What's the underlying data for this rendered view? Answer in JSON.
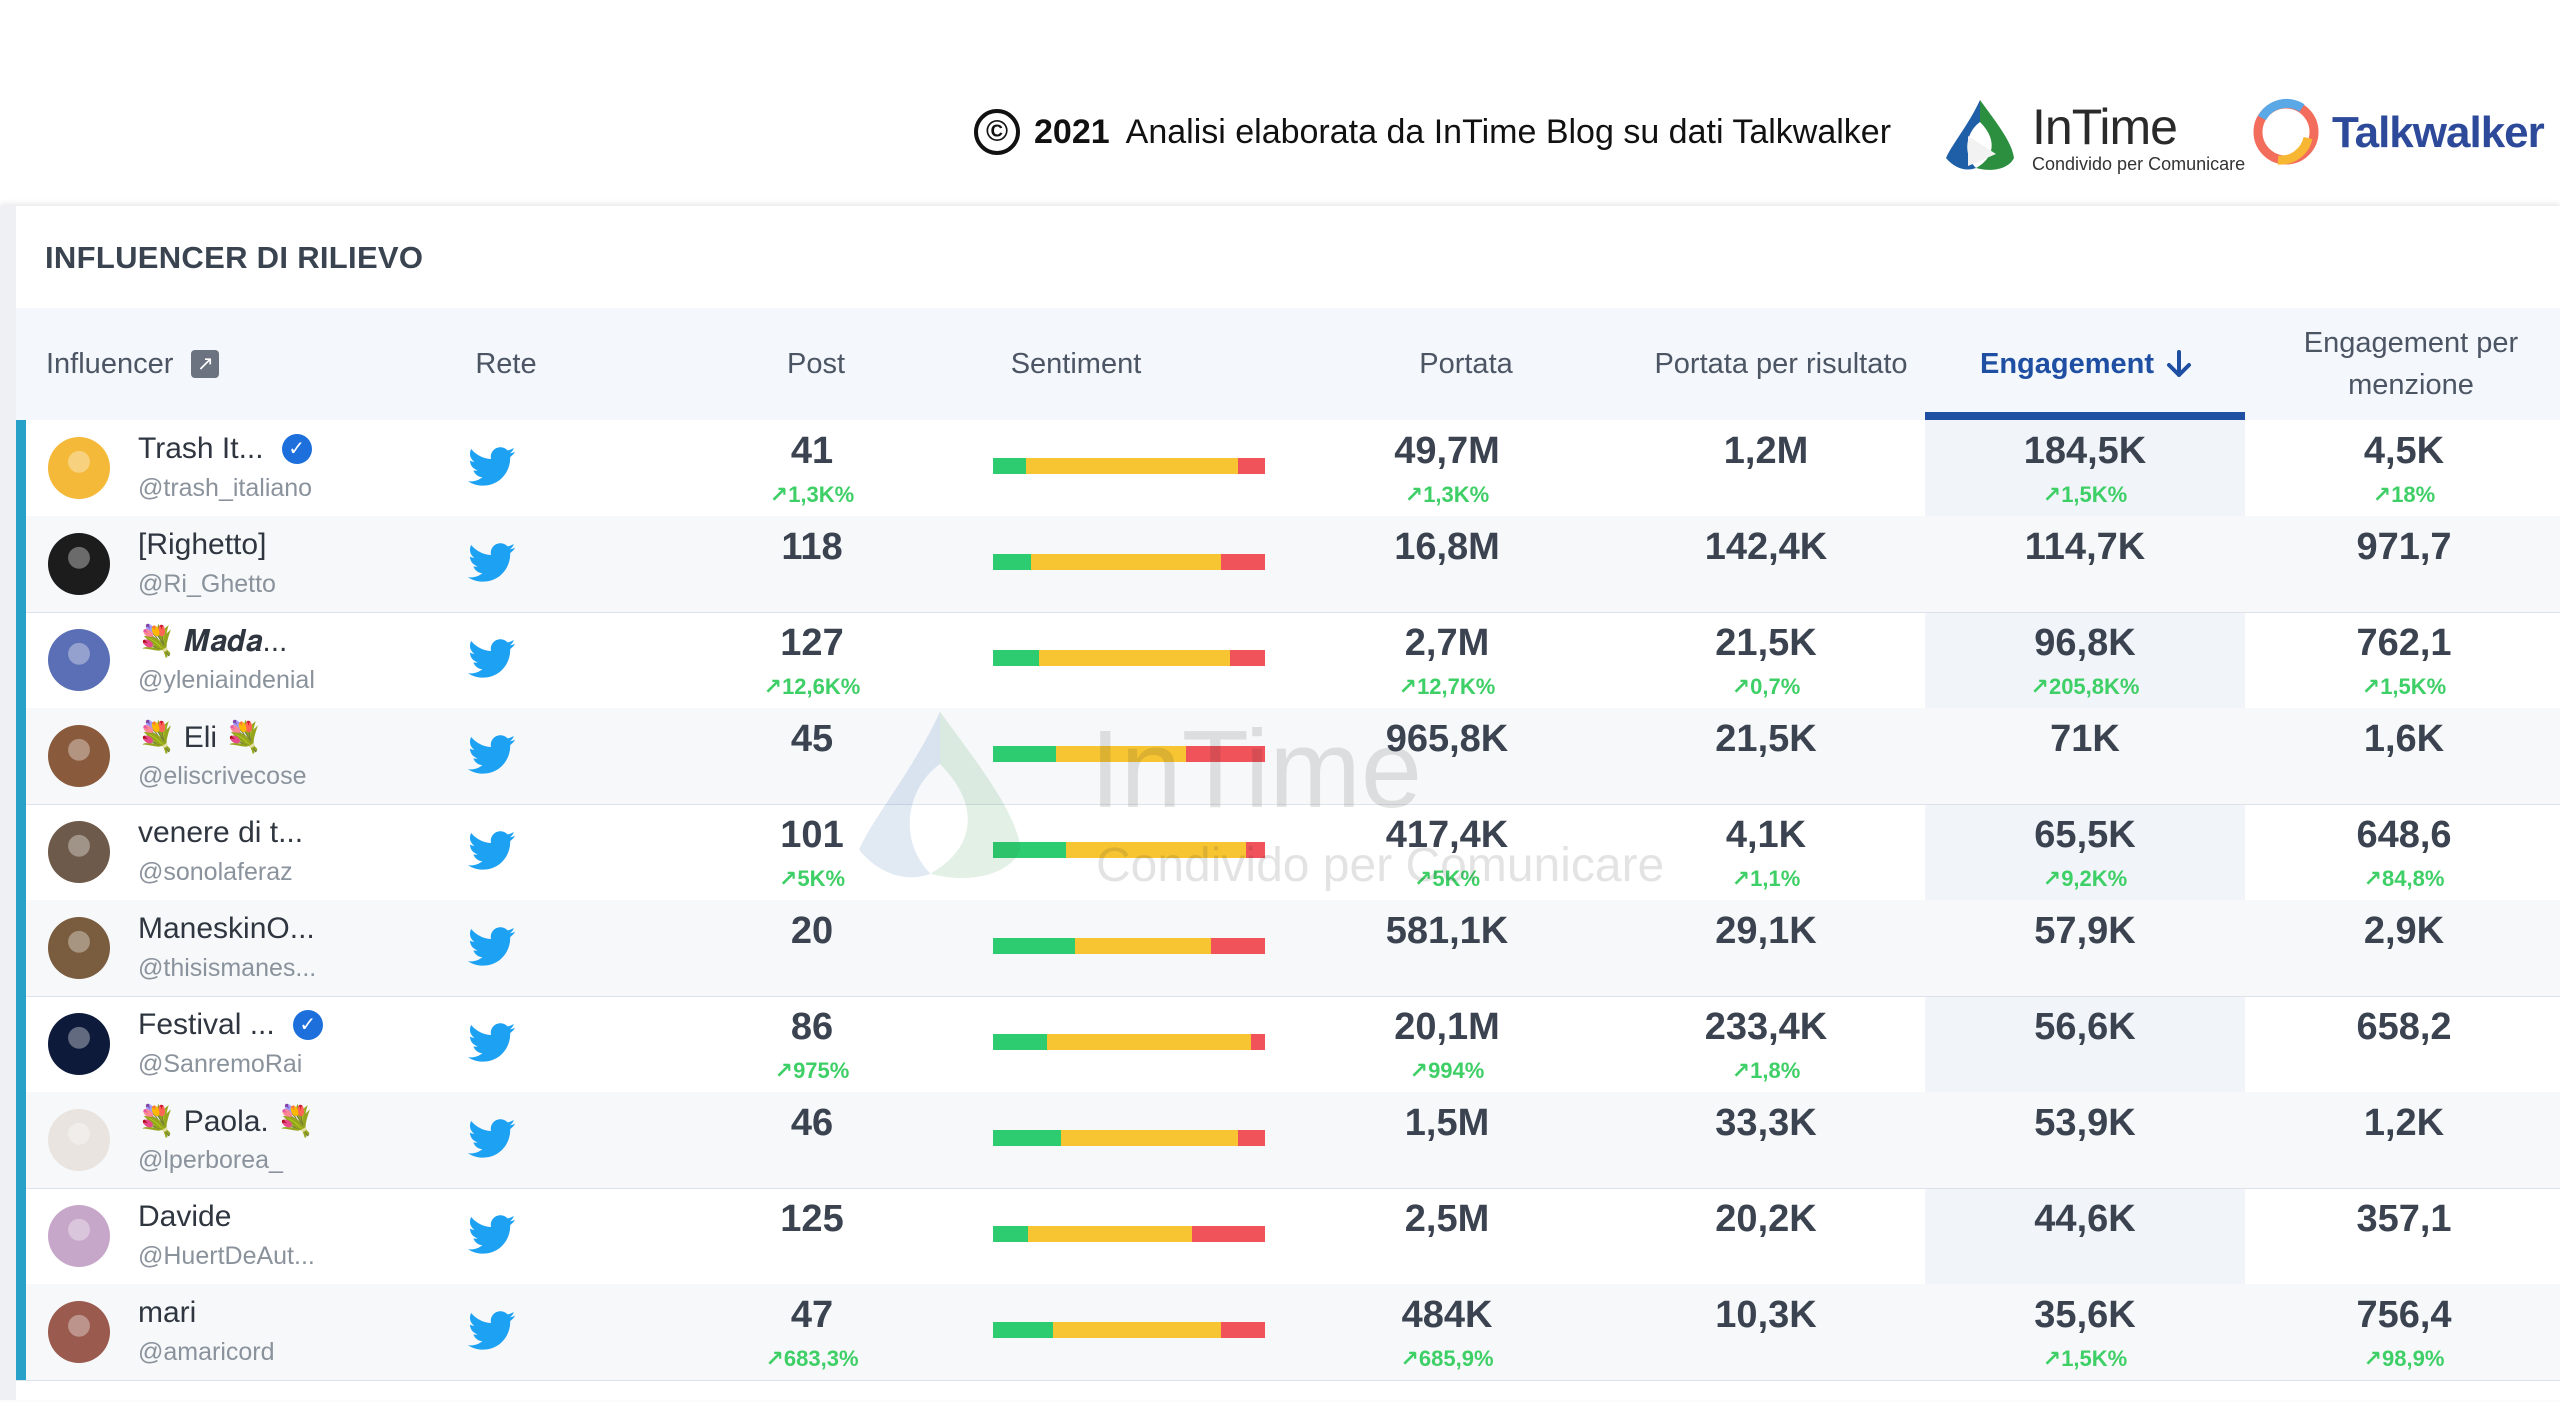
{
  "banner": {
    "copyright_symbol": "©",
    "year": "2021",
    "text": "Analisi elaborata da InTime Blog su dati Talkwalker",
    "intime_name": "InTime",
    "intime_tagline": "Condivido per Comunicare",
    "talkwalker_name": "Talkwalker"
  },
  "watermark": {
    "name": "InTime",
    "tagline": "Condivido per Comunicare"
  },
  "panel": {
    "title": "INFLUENCER DI RILIEVO"
  },
  "columns": {
    "influencer": "Influencer",
    "rete": "Rete",
    "post": "Post",
    "sentiment": "Sentiment",
    "portata": "Portata",
    "portata_risultato": "Portata per risultato",
    "engagement": "Engagement",
    "engagement_menzione_1": "Engagement per",
    "engagement_menzione_2": "menzione"
  },
  "colors": {
    "positive": "#2ecc71",
    "neutral": "#f7c531",
    "negative": "#f0535a",
    "accent": "#27a1c8",
    "sort": "#1f4fa3"
  },
  "rows": [
    {
      "name": "Trash It...",
      "verified": true,
      "handle": "@trash_italiano",
      "network": "twitter-icon",
      "post": "41",
      "post_delta": "↗1,3K%",
      "sentiment": [
        0.12,
        0.78,
        0.1
      ],
      "portata": "49,7M",
      "portata_delta": "↗1,3K%",
      "portata_risultato": "1,2M",
      "portata_risultato_delta": "",
      "engagement": "184,5K",
      "engagement_delta": "↗1,5K%",
      "eng_menzione": "4,5K",
      "eng_menzione_delta": "↗18%",
      "avatar": "#f5b93a"
    },
    {
      "name": "[Righetto]",
      "verified": false,
      "handle": "@Ri_Ghetto",
      "network": "twitter-icon",
      "post": "118",
      "post_delta": "",
      "sentiment": [
        0.14,
        0.7,
        0.16
      ],
      "portata": "16,8M",
      "portata_delta": "",
      "portata_risultato": "142,4K",
      "portata_risultato_delta": "",
      "engagement": "114,7K",
      "engagement_delta": "",
      "eng_menzione": "971,7",
      "eng_menzione_delta": "",
      "avatar": "#1c1c1c"
    },
    {
      "name": "💐 𝑴𝒂𝒅𝒂...",
      "verified": false,
      "handle": "@yleniaindenial",
      "network": "twitter-icon",
      "post": "127",
      "post_delta": "↗12,6K%",
      "sentiment": [
        0.17,
        0.7,
        0.13
      ],
      "portata": "2,7M",
      "portata_delta": "↗12,7K%",
      "portata_risultato": "21,5K",
      "portata_risultato_delta": "↗0,7%",
      "engagement": "96,8K",
      "engagement_delta": "↗205,8K%",
      "eng_menzione": "762,1",
      "eng_menzione_delta": "↗1,5K%",
      "avatar": "#5a6fb5"
    },
    {
      "name": "💐 Eli 💐",
      "verified": false,
      "handle": "@eliscrivecose",
      "network": "twitter-icon",
      "post": "45",
      "post_delta": "",
      "sentiment": [
        0.23,
        0.48,
        0.29
      ],
      "portata": "965,8K",
      "portata_delta": "",
      "portata_risultato": "21,5K",
      "portata_risultato_delta": "",
      "engagement": "71K",
      "engagement_delta": "",
      "eng_menzione": "1,6K",
      "eng_menzione_delta": "",
      "avatar": "#8a5a3c"
    },
    {
      "name": "venere di t...",
      "verified": false,
      "handle": "@sonolaferaz",
      "network": "twitter-icon",
      "post": "101",
      "post_delta": "↗5K%",
      "sentiment": [
        0.27,
        0.66,
        0.07
      ],
      "portata": "417,4K",
      "portata_delta": "↗5K%",
      "portata_risultato": "4,1K",
      "portata_risultato_delta": "↗1,1%",
      "engagement": "65,5K",
      "engagement_delta": "↗9,2K%",
      "eng_menzione": "648,6",
      "eng_menzione_delta": "↗84,8%",
      "avatar": "#6d5a4a"
    },
    {
      "name": "ManeskinO...",
      "verified": false,
      "handle": "@thisismanes...",
      "network": "twitter-icon",
      "post": "20",
      "post_delta": "",
      "sentiment": [
        0.3,
        0.5,
        0.2
      ],
      "portata": "581,1K",
      "portata_delta": "",
      "portata_risultato": "29,1K",
      "portata_risultato_delta": "",
      "engagement": "57,9K",
      "engagement_delta": "",
      "eng_menzione": "2,9K",
      "eng_menzione_delta": "",
      "avatar": "#7a5c3e"
    },
    {
      "name": "Festival ...",
      "verified": true,
      "handle": "@SanremoRai",
      "network": "twitter-icon",
      "post": "86",
      "post_delta": "↗975%",
      "sentiment": [
        0.2,
        0.75,
        0.05
      ],
      "portata": "20,1M",
      "portata_delta": "↗994%",
      "portata_risultato": "233,4K",
      "portata_risultato_delta": "↗1,8%",
      "engagement": "56,6K",
      "engagement_delta": "",
      "eng_menzione": "658,2",
      "eng_menzione_delta": "",
      "avatar": "#0d1a3a"
    },
    {
      "name": "💐 Paola. 💐",
      "verified": false,
      "handle": "@lperborea_",
      "network": "twitter-icon",
      "post": "46",
      "post_delta": "",
      "sentiment": [
        0.25,
        0.65,
        0.1
      ],
      "portata": "1,5M",
      "portata_delta": "",
      "portata_risultato": "33,3K",
      "portata_risultato_delta": "",
      "engagement": "53,9K",
      "engagement_delta": "",
      "eng_menzione": "1,2K",
      "eng_menzione_delta": "",
      "avatar": "#e9e4df"
    },
    {
      "name": "Davide",
      "verified": false,
      "handle": "@HuertDeAut...",
      "network": "twitter-icon",
      "post": "125",
      "post_delta": "",
      "sentiment": [
        0.13,
        0.6,
        0.27
      ],
      "portata": "2,5M",
      "portata_delta": "",
      "portata_risultato": "20,2K",
      "portata_risultato_delta": "",
      "engagement": "44,6K",
      "engagement_delta": "",
      "eng_menzione": "357,1",
      "eng_menzione_delta": "",
      "avatar": "#c7a7c9"
    },
    {
      "name": "mari",
      "verified": false,
      "handle": "@amaricord",
      "network": "twitter-icon",
      "post": "47",
      "post_delta": "↗683,3%",
      "sentiment": [
        0.22,
        0.62,
        0.16
      ],
      "portata": "484K",
      "portata_delta": "↗685,9%",
      "portata_risultato": "10,3K",
      "portata_risultato_delta": "",
      "engagement": "35,6K",
      "engagement_delta": "↗1,5K%",
      "eng_menzione": "756,4",
      "eng_menzione_delta": "↗98,9%",
      "avatar": "#9a5a4e"
    }
  ]
}
